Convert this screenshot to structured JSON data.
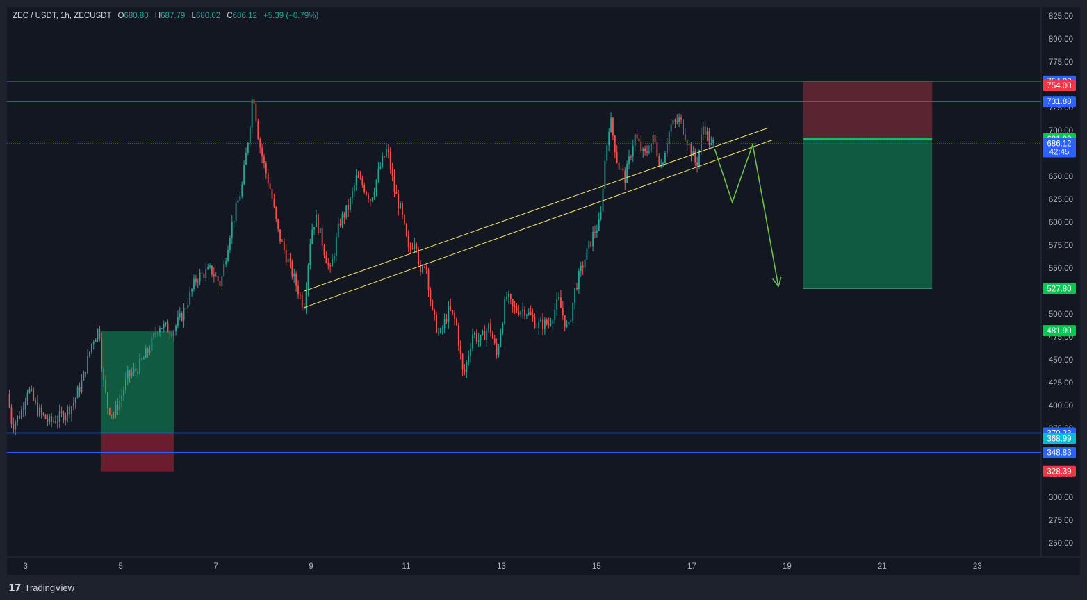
{
  "header": {
    "symbol": "ZEC / USDT, 1h, ZECUSDT",
    "open_label": "O",
    "open": "680.80",
    "high_label": "H",
    "high": "687.79",
    "low_label": "L",
    "low": "680.02",
    "close_label": "C",
    "close": "686.12",
    "change": "+5.39 (+0.79%)"
  },
  "footer": {
    "brand": "TradingView",
    "brand_icon": "tradingview-logo-icon"
  },
  "colors": {
    "background": "#131722",
    "frame": "#1e222d",
    "up": "#26a69a",
    "down": "#ef5350",
    "level_line": "#2962ff",
    "trendline": "#f5e663",
    "arrow": "#6cc24a",
    "profit_zone": "#0f5a40",
    "loss_zone": "#6b1c2e",
    "target_line": "#00e676"
  },
  "chart_data": {
    "type": "candlestick",
    "symbol": "ZECUSDT",
    "timeframe": "1h",
    "ylim": [
      235,
      835
    ],
    "y_ticks": [
      "825.00",
      "800.00",
      "775.00",
      "750.00",
      "725.00",
      "700.00",
      "675.00",
      "650.00",
      "625.00",
      "600.00",
      "575.00",
      "550.00",
      "525.00",
      "500.00",
      "475.00",
      "450.00",
      "425.00",
      "400.00",
      "375.00",
      "350.00",
      "325.00",
      "300.00",
      "275.00",
      "250.00"
    ],
    "x_ticks": [
      {
        "label": "3",
        "day": 3
      },
      {
        "label": "5",
        "day": 5
      },
      {
        "label": "7",
        "day": 7
      },
      {
        "label": "9",
        "day": 9
      },
      {
        "label": "11",
        "day": 11
      },
      {
        "label": "13",
        "day": 13
      },
      {
        "label": "15",
        "day": 15
      },
      {
        "label": "17",
        "day": 17
      },
      {
        "label": "19",
        "day": 19
      },
      {
        "label": "21",
        "day": 21
      },
      {
        "label": "23",
        "day": 23
      }
    ],
    "x_range_days": [
      2.61,
      24.34
    ],
    "price_path": [
      [
        2.62,
        413
      ],
      [
        2.72,
        378
      ],
      [
        2.9,
        392
      ],
      [
        3.05,
        420
      ],
      [
        3.25,
        395
      ],
      [
        3.5,
        382
      ],
      [
        3.75,
        388
      ],
      [
        4.0,
        402
      ],
      [
        4.2,
        428
      ],
      [
        4.4,
        470
      ],
      [
        4.55,
        485
      ],
      [
        4.62,
        432
      ],
      [
        4.72,
        400
      ],
      [
        4.85,
        390
      ],
      [
        5.0,
        408
      ],
      [
        5.15,
        432
      ],
      [
        5.35,
        440
      ],
      [
        5.6,
        462
      ],
      [
        5.8,
        488
      ],
      [
        6.1,
        482
      ],
      [
        6.3,
        500
      ],
      [
        6.6,
        540
      ],
      [
        6.9,
        548
      ],
      [
        7.1,
        532
      ],
      [
        7.3,
        590
      ],
      [
        7.55,
        640
      ],
      [
        7.7,
        700
      ],
      [
        7.78,
        745
      ],
      [
        7.9,
        690
      ],
      [
        8.0,
        665
      ],
      [
        8.15,
        635
      ],
      [
        8.3,
        590
      ],
      [
        8.5,
        560
      ],
      [
        8.7,
        530
      ],
      [
        8.85,
        508
      ],
      [
        9.0,
        590
      ],
      [
        9.1,
        605
      ],
      [
        9.25,
        575
      ],
      [
        9.4,
        545
      ],
      [
        9.6,
        600
      ],
      [
        9.8,
        618
      ],
      [
        9.95,
        648
      ],
      [
        10.1,
        640
      ],
      [
        10.25,
        625
      ],
      [
        10.45,
        660
      ],
      [
        10.6,
        680
      ],
      [
        10.75,
        635
      ],
      [
        10.9,
        610
      ],
      [
        11.05,
        568
      ],
      [
        11.2,
        585
      ],
      [
        11.3,
        540
      ],
      [
        11.4,
        560
      ],
      [
        11.55,
        500
      ],
      [
        11.7,
        475
      ],
      [
        11.9,
        505
      ],
      [
        12.05,
        490
      ],
      [
        12.2,
        430
      ],
      [
        12.4,
        480
      ],
      [
        12.55,
        470
      ],
      [
        12.75,
        488
      ],
      [
        12.9,
        455
      ],
      [
        13.1,
        520
      ],
      [
        13.25,
        505
      ],
      [
        13.5,
        505
      ],
      [
        13.75,
        488
      ],
      [
        14.0,
        490
      ],
      [
        14.2,
        515
      ],
      [
        14.4,
        480
      ],
      [
        14.55,
        528
      ],
      [
        14.75,
        560
      ],
      [
        14.95,
        590
      ],
      [
        15.08,
        600
      ],
      [
        15.15,
        655
      ],
      [
        15.28,
        715
      ],
      [
        15.45,
        662
      ],
      [
        15.6,
        648
      ],
      [
        15.8,
        695
      ],
      [
        16.0,
        672
      ],
      [
        16.2,
        692
      ],
      [
        16.35,
        660
      ],
      [
        16.55,
        705
      ],
      [
        16.75,
        712
      ],
      [
        16.9,
        690
      ],
      [
        17.1,
        662
      ],
      [
        17.25,
        708
      ],
      [
        17.4,
        682
      ],
      [
        17.45,
        686
      ]
    ],
    "candle_count": 352,
    "seed": 7,
    "horizontal_levels": [
      754.02,
      731.88,
      370.23,
      348.83
    ],
    "last_price_line": 686.12,
    "price_labels": [
      {
        "text": "754.02",
        "price": 754.02,
        "color": "#2962ff"
      },
      {
        "text": "754.00",
        "price": 749.4,
        "color": "#f23645"
      },
      {
        "text": "731.88",
        "price": 731.88,
        "color": "#2962ff"
      },
      {
        "text": "691.09",
        "price": 691.09,
        "color": "#00c853"
      },
      {
        "text": "686.12",
        "price": 686.12,
        "color": "#2962ff"
      },
      {
        "text": "42:45",
        "price": 677.0,
        "color": "#2962ff"
      },
      {
        "text": "527.80",
        "price": 527.8,
        "color": "#00c853"
      },
      {
        "text": "481.90",
        "price": 481.9,
        "color": "#00c853"
      },
      {
        "text": "370.23",
        "price": 370.23,
        "color": "#2962ff"
      },
      {
        "text": "368.99",
        "price": 364.0,
        "color": "#00bcd4"
      },
      {
        "text": "348.83",
        "price": 348.83,
        "color": "#2962ff"
      },
      {
        "text": "328.39",
        "price": 328.39,
        "color": "#f23645"
      }
    ],
    "long_position": {
      "start_day": 4.58,
      "end_day": 6.13,
      "entry": 370.23,
      "target": 481.9,
      "stop": 328.39
    },
    "short_position": {
      "start_day": 19.34,
      "end_day": 22.05,
      "entry": 691.09,
      "target": 527.8,
      "stop": 754.02
    },
    "trendlines": [
      {
        "from": [
          8.85,
          525
        ],
        "to": [
          18.6,
          703
        ]
      },
      {
        "from": [
          8.85,
          507
        ],
        "to": [
          18.7,
          690
        ]
      }
    ],
    "projection_path": [
      [
        17.48,
        680
      ],
      [
        17.85,
        622
      ],
      [
        18.28,
        685
      ],
      [
        18.82,
        530
      ]
    ]
  }
}
